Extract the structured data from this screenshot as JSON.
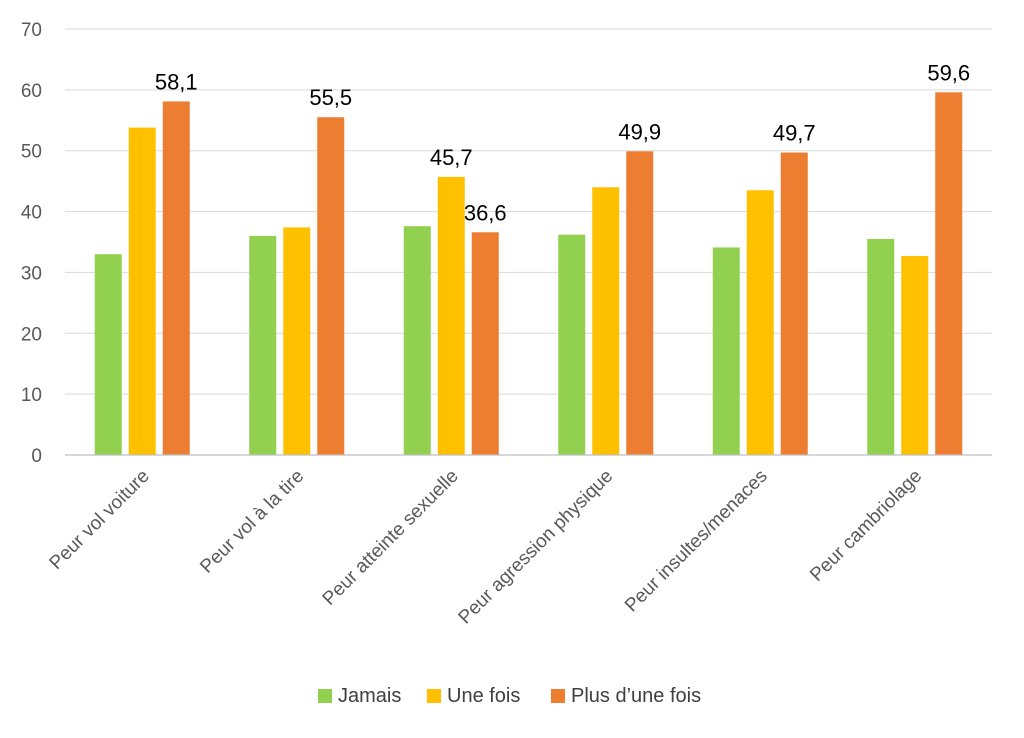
{
  "chart_data": {
    "type": "bar",
    "categories": [
      "Peur vol voiture",
      "Peur vol à la tire",
      "Peur atteinte sexuelle",
      "Peur agression physique",
      "Peur insultes/menaces",
      "Peur cambriolage"
    ],
    "series": [
      {
        "name": "Jamais",
        "color": "#92d050",
        "values": [
          33.0,
          36.0,
          37.6,
          36.2,
          34.1,
          35.5
        ]
      },
      {
        "name": "Une fois",
        "color": "#ffc000",
        "values": [
          53.8,
          37.4,
          45.7,
          44.0,
          43.5,
          32.7
        ]
      },
      {
        "name": "Plus d’une fois",
        "color": "#ed7d31",
        "values": [
          58.1,
          55.5,
          36.6,
          49.9,
          49.7,
          59.6
        ]
      }
    ],
    "data_labels": [
      {
        "category": 0,
        "series": 2,
        "text": "58,1"
      },
      {
        "category": 1,
        "series": 2,
        "text": "55,5"
      },
      {
        "category": 2,
        "series": 1,
        "text": "45,7"
      },
      {
        "category": 2,
        "series": 2,
        "text": "36,6"
      },
      {
        "category": 3,
        "series": 2,
        "text": "49,9"
      },
      {
        "category": 4,
        "series": 2,
        "text": "49,7"
      },
      {
        "category": 5,
        "series": 2,
        "text": "59,6"
      }
    ],
    "yticks": [
      "0",
      "10",
      "20",
      "30",
      "40",
      "50",
      "60",
      "70"
    ],
    "ylim": [
      0,
      70
    ],
    "title": "",
    "xlabel": "",
    "ylabel": "",
    "grid": true,
    "legend": "bottom"
  }
}
